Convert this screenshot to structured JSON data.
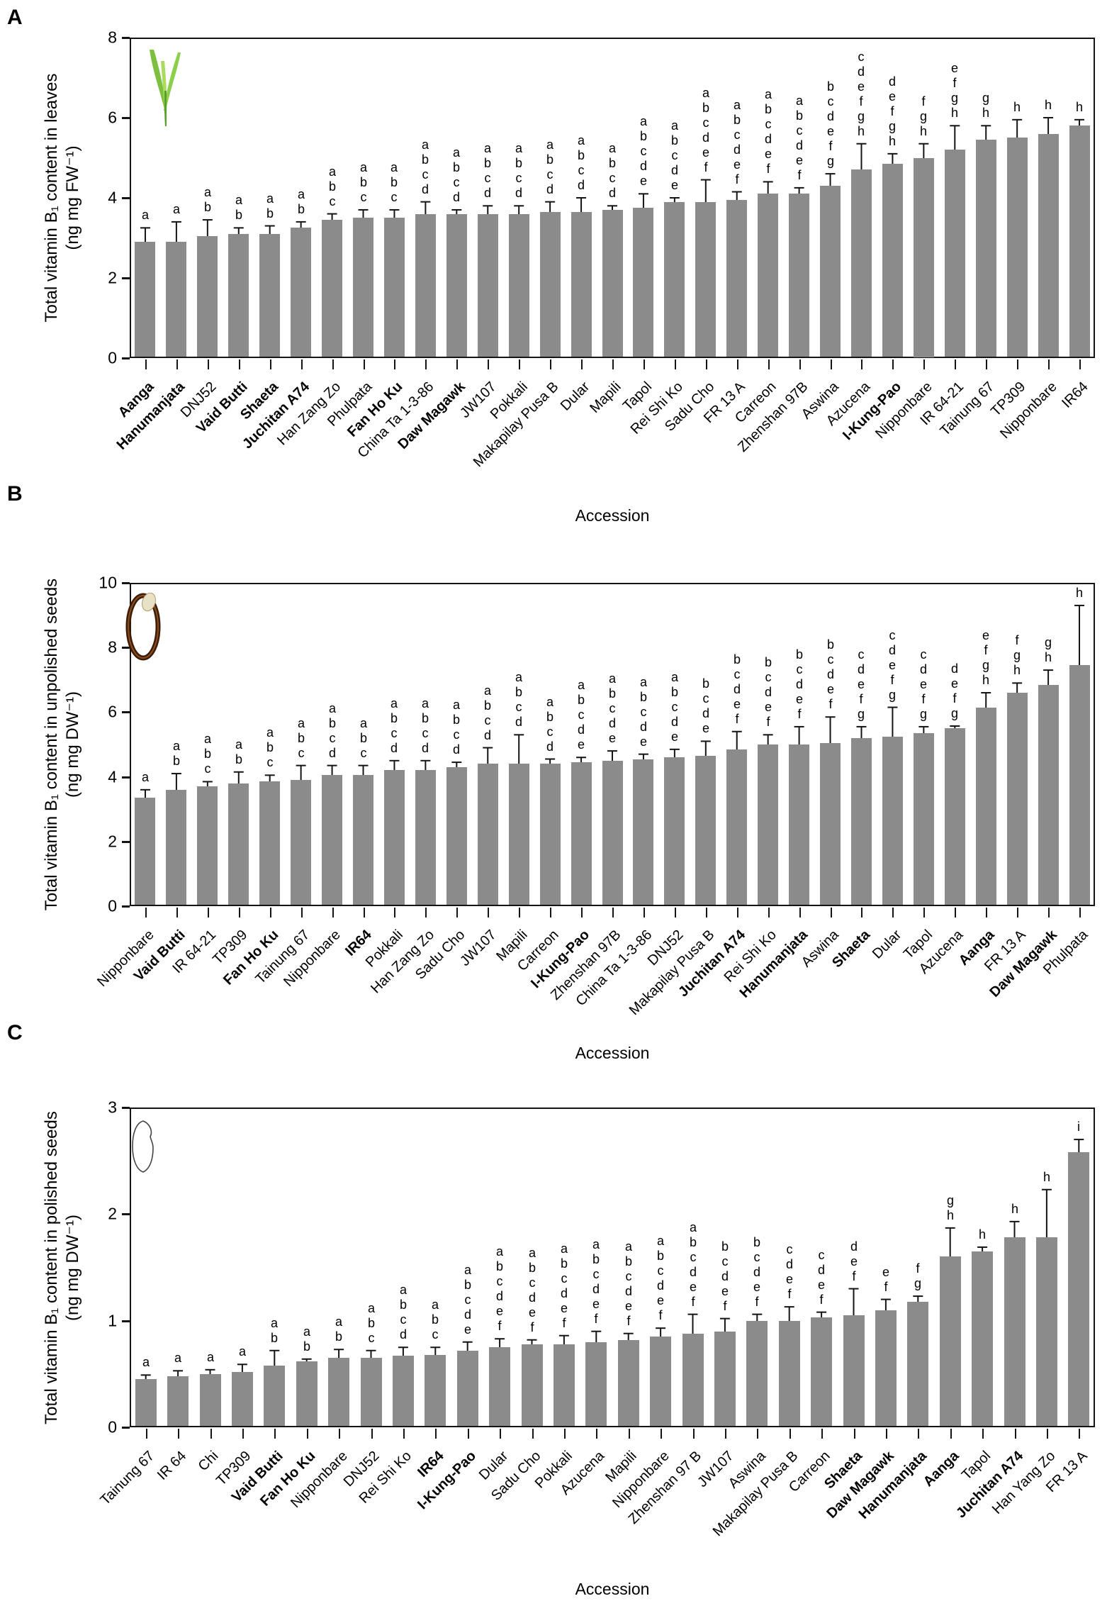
{
  "colors": {
    "bar": "#8b8b8b",
    "axis": "#141414",
    "error_bar": "#141414",
    "text": "#000000",
    "leaf_green": "#7cc03d",
    "leaf_green_dark": "#58a02c",
    "leaf_green_light": "#aadb5e",
    "seed_brown": "#3d1d09",
    "seed_brown_light": "#8a4f1d",
    "seed_cream": "#e9e1c6",
    "grain_outline": "#444444"
  },
  "panels": [
    {
      "letter": "A",
      "y_label_line1": "Total vitamin B₁ content in leaves",
      "y_label_line2": "(ng mg FW⁻¹)",
      "x_label": "Accession",
      "icon": "rice-seedling-icon"
    },
    {
      "letter": "B",
      "y_label_line1": "Total vitamin B₁ content in unpolished seeds",
      "y_label_line2": "(ng mg DW⁻¹)",
      "x_label": "Accession",
      "icon": "unpolished-seed-icon"
    },
    {
      "letter": "C",
      "y_label_line1": "Total vitamin B₁ content in polished seeds",
      "y_label_line2": "(ng mg DW⁻¹)",
      "x_label": "Accession",
      "icon": "polished-grain-icon"
    }
  ],
  "chart_data": [
    {
      "type": "bar",
      "title": "Total vitamin B1 content in leaves",
      "xlabel": "Accession",
      "ylabel": "Total vitamin B1 content in leaves (ng mg FW-1)",
      "ylim": [
        0,
        8
      ],
      "yticks": [
        0,
        2,
        4,
        6,
        8
      ],
      "grid": false,
      "categories": [
        "Aanga",
        "Hanumanjata",
        "DNJ52",
        "Vaid Butti",
        "Shaeta",
        "Juchitan A74",
        "Han Zang Zo",
        "Phulpata",
        "Fan Ho Ku",
        "China Ta 1-3-86",
        "Daw Magawk",
        "JW107",
        "Pokkali",
        "Makapilay Pusa B",
        "Dular",
        "Mapili",
        "Tapol",
        "Rei Shi Ko",
        "Sadu Cho",
        "FR 13 A",
        "Carreon",
        "Zhenshan 97B",
        "Aswina",
        "Azucena",
        "I-Kung-Pao",
        "Nipponbare",
        "IR 64-21",
        "Tainung 67",
        "TP309",
        "Nipponbare",
        "IR64"
      ],
      "bold": [
        true,
        true,
        false,
        true,
        true,
        true,
        false,
        false,
        true,
        false,
        true,
        false,
        false,
        false,
        false,
        false,
        false,
        false,
        false,
        false,
        false,
        false,
        false,
        false,
        true,
        false,
        false,
        false,
        false,
        false,
        false
      ],
      "values": [
        2.9,
        2.9,
        3.05,
        3.1,
        3.1,
        3.25,
        3.45,
        3.5,
        3.5,
        3.6,
        3.6,
        3.6,
        3.6,
        3.65,
        3.65,
        3.7,
        3.75,
        3.9,
        3.9,
        3.95,
        4.1,
        4.1,
        4.3,
        4.7,
        4.85,
        5.0,
        5.2,
        5.45,
        5.5,
        5.6,
        5.8
      ],
      "errors": [
        0.35,
        0.5,
        0.4,
        0.15,
        0.2,
        0.15,
        0.15,
        0.2,
        0.2,
        0.3,
        0.1,
        0.2,
        0.2,
        0.25,
        0.35,
        0.1,
        0.35,
        0.1,
        0.55,
        0.2,
        0.3,
        0.15,
        0.3,
        0.65,
        0.25,
        0.35,
        0.6,
        0.35,
        0.45,
        0.4,
        0.15
      ],
      "sig_letters": [
        "a",
        "a",
        "ab",
        "ab",
        "ab",
        "ab",
        "abc",
        "abc",
        "abc",
        "abcd",
        "abcd",
        "abcd",
        "abcd",
        "abcd",
        "abcd",
        "abcd",
        "abcde",
        "abcde",
        "abcdef",
        "abcdef",
        "abcdef",
        "abcdef",
        "bcdefg",
        "cdefgh",
        "defgh",
        "fgh",
        "efgh",
        "gh",
        "h",
        "h",
        "h"
      ]
    },
    {
      "type": "bar",
      "title": "Total vitamin B1 content in unpolished seeds",
      "xlabel": "Accession",
      "ylabel": "Total vitamin B1 content in unpolished seeds (ng mg DW-1)",
      "ylim": [
        0,
        10
      ],
      "yticks": [
        0,
        2,
        4,
        6,
        8,
        10
      ],
      "grid": false,
      "categories": [
        "Nipponbare",
        "Vaid Butti",
        "IR 64-21",
        "TP309",
        "Fan Ho Ku",
        "Tainung 67",
        "Nipponbare",
        "IR64",
        "Pokkali",
        "Han Zang Zo",
        "Sadu Cho",
        "JW107",
        "Mapili",
        "Carreon",
        "I-Kung-Pao",
        "Zhenshan 97B",
        "China Ta 1-3-86",
        "DNJ52",
        "Makapilay Pusa B",
        "Juchitan A74",
        "Rei Shi Ko",
        "Hanumanjata",
        "Aswina",
        "Shaeta",
        "Dular",
        "Tapol",
        "Azucena",
        "Aanga",
        "FR 13 A",
        "Daw Magawk",
        "Phulpata"
      ],
      "bold": [
        false,
        true,
        false,
        false,
        true,
        false,
        false,
        true,
        false,
        false,
        false,
        false,
        false,
        false,
        true,
        false,
        false,
        false,
        false,
        true,
        false,
        true,
        false,
        true,
        false,
        false,
        false,
        true,
        false,
        true,
        false
      ],
      "values": [
        3.35,
        3.6,
        3.7,
        3.8,
        3.85,
        3.9,
        4.05,
        4.05,
        4.2,
        4.2,
        4.3,
        4.4,
        4.4,
        4.4,
        4.45,
        4.5,
        4.55,
        4.6,
        4.65,
        4.85,
        5.0,
        5.0,
        5.05,
        5.2,
        5.25,
        5.35,
        5.5,
        6.15,
        6.6,
        6.85,
        7.45
      ],
      "errors": [
        0.25,
        0.5,
        0.15,
        0.35,
        0.2,
        0.45,
        0.3,
        0.3,
        0.3,
        0.3,
        0.15,
        0.5,
        0.9,
        0.15,
        0.15,
        0.3,
        0.15,
        0.25,
        0.45,
        0.55,
        0.3,
        0.55,
        0.8,
        0.35,
        0.9,
        0.2,
        0.07,
        0.45,
        0.3,
        0.45,
        1.85
      ],
      "sig_letters": [
        "a",
        "ab",
        "abc",
        "ab",
        "abc",
        "abc",
        "abcd",
        "abc",
        "abcd",
        "abcd",
        "abcd",
        "abcd",
        "abcd",
        "abcd",
        "abcde",
        "abcde",
        "abcde",
        "abcde",
        "bcde",
        "bcdef",
        "bcdef",
        "bcdef",
        "bcdef",
        "cdefg",
        "cdefg",
        "cdefg",
        "defg",
        "efgh",
        "fgh",
        "gh",
        "h"
      ]
    },
    {
      "type": "bar",
      "title": "Total vitamin B1 content in polished seeds",
      "xlabel": "Accession",
      "ylabel": "Total vitamin B1 content in polished seeds (ng mg DW-1)",
      "ylim": [
        0,
        3
      ],
      "yticks": [
        0,
        1,
        2,
        3
      ],
      "grid": false,
      "categories": [
        "Tainung 67",
        "IR 64",
        "Chi",
        "TP309",
        "Vaid Butti",
        "Fan Ho Ku",
        "Nipponbare",
        "DNJ52",
        "Rei Shi Ko",
        "IR64",
        "I-Kung-Pao",
        "Dular",
        "Sadu Cho",
        "Pokkali",
        "Azucena",
        "Mapili",
        "Nipponbare",
        "Zhenshan 97 B",
        "JW107",
        "Aswina",
        "Makapilay Pusa B",
        "Carreon",
        "Shaeta",
        "Daw Magawk",
        "Hanumanjata",
        "Aanga",
        "Tapol",
        "Juchitan A74",
        "Han Yang Zo",
        "FR 13 A"
      ],
      "bold": [
        false,
        false,
        false,
        false,
        true,
        true,
        false,
        false,
        false,
        true,
        true,
        false,
        false,
        false,
        false,
        false,
        false,
        false,
        false,
        false,
        false,
        false,
        true,
        true,
        true,
        true,
        false,
        true,
        false,
        false
      ],
      "values": [
        0.45,
        0.48,
        0.5,
        0.52,
        0.58,
        0.62,
        0.65,
        0.65,
        0.67,
        0.68,
        0.72,
        0.75,
        0.78,
        0.78,
        0.8,
        0.82,
        0.85,
        0.88,
        0.9,
        1.0,
        1.0,
        1.03,
        1.05,
        1.1,
        1.18,
        1.6,
        1.65,
        1.78,
        1.78,
        2.58
      ],
      "errors": [
        0.04,
        0.05,
        0.04,
        0.07,
        0.14,
        0.02,
        0.08,
        0.07,
        0.08,
        0.07,
        0.08,
        0.08,
        0.04,
        0.08,
        0.1,
        0.06,
        0.08,
        0.18,
        0.12,
        0.06,
        0.13,
        0.05,
        0.25,
        0.1,
        0.05,
        0.27,
        0.04,
        0.15,
        0.45,
        0.12
      ],
      "sig_letters": [
        "a",
        "a",
        "a",
        "a",
        "ab",
        "ab",
        "ab",
        "abc",
        "abcd",
        "abc",
        "abcde",
        "abcdef",
        "abcdef",
        "abcdef",
        "abcdef",
        "abcdef",
        "abcdef",
        "abcdef",
        "bcdef",
        "bcdef",
        "cdef",
        "cdef",
        "def",
        "ef",
        "fg",
        "gh",
        "h",
        "h",
        "h",
        "i"
      ]
    }
  ]
}
